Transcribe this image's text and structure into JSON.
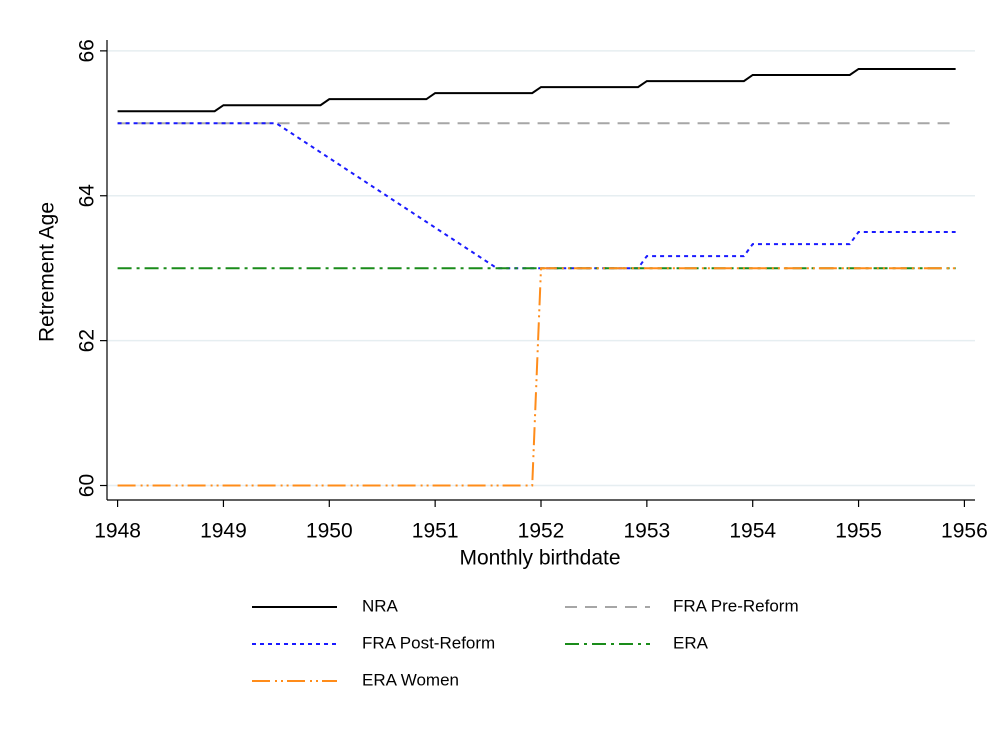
{
  "chart_data": {
    "type": "line",
    "y_label": "Retrement Age",
    "x_label": "Monthly birthdate",
    "xlim": [
      1947.9,
      1956.1
    ],
    "xticks": [
      1948,
      1949,
      1950,
      1951,
      1952,
      1953,
      1954,
      1955,
      1956
    ],
    "ylim": [
      59.8,
      66.15
    ],
    "yticks": [
      60,
      62,
      64,
      66
    ],
    "grid": true,
    "legend": "bottom",
    "series": [
      {
        "name": "NRA",
        "color": "#000000",
        "dash": "solid",
        "x": [
          1948,
          1948.917,
          1949,
          1949.917,
          1950,
          1950.917,
          1951,
          1951.917,
          1952,
          1952.917,
          1953,
          1953.917,
          1954,
          1954.917,
          1955,
          1955.917
        ],
        "values": [
          65.167,
          65.167,
          65.25,
          65.25,
          65.333,
          65.333,
          65.417,
          65.417,
          65.5,
          65.5,
          65.583,
          65.583,
          65.667,
          65.667,
          65.75,
          65.75
        ]
      },
      {
        "name": "FRA Pre-Reform",
        "color": "#a6a6a6",
        "dash": "dash",
        "x": [
          1948,
          1955.917
        ],
        "values": [
          65,
          65
        ]
      },
      {
        "name": "FRA Post-Reform",
        "color": "#1a1aff",
        "dash": "dot",
        "x": [
          1948,
          1949.5,
          1951.583,
          1952.917,
          1953,
          1953.917,
          1954,
          1954.917,
          1955,
          1955.917
        ],
        "values": [
          65,
          65,
          63,
          63,
          63.167,
          63.167,
          63.333,
          63.333,
          63.5,
          63.5
        ]
      },
      {
        "name": "ERA",
        "color": "#1a8c1a",
        "dash": "dashdot",
        "x": [
          1948,
          1955.917
        ],
        "values": [
          63,
          63
        ]
      },
      {
        "name": "ERA Women",
        "color": "#ff8c1a",
        "dash": "longdashdot",
        "x": [
          1948,
          1951.917,
          1952,
          1955.917
        ],
        "values": [
          60,
          60,
          63,
          63
        ]
      }
    ]
  }
}
